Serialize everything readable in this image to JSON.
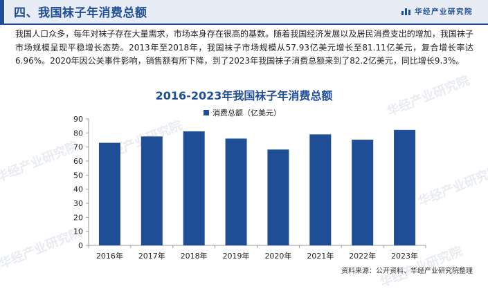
{
  "header": {
    "title": "四、我国袜子年消费总额",
    "brand": "华经产业研究院"
  },
  "paragraph": "我国人口众多，每年对袜子存在大量需求，市场本身存在很高的基数。随着我国经济发展以及居民消费支出的增加，我国袜子市场规模呈现平稳增长态势。2013年至2018年，我国袜子市场规模从57.93亿美元增长至81.11亿美元，复合增长率达6.96%。2020年因公关事件影响，销售额有所下降，到了2023年我国袜子消费总额来到了82.2亿美元，同比增长9.3%。",
  "watermark": "华经产业研究院",
  "colors": {
    "accent": "#1f4e96",
    "bar": "#1f4e96"
  },
  "chart_data": {
    "type": "bar",
    "title": "2016-2023年我国袜子年消费总额",
    "categories": [
      "2016年",
      "2017年",
      "2018年",
      "2019年",
      "2020年",
      "2021年",
      "2022年",
      "2023年"
    ],
    "series": [
      {
        "name": "消费总额（亿美元）",
        "values": [
          73,
          77.5,
          81.11,
          76,
          68.2,
          79,
          75.2,
          82.2
        ]
      }
    ],
    "ylim": [
      0,
      90
    ],
    "yticks": [
      0,
      10,
      20,
      30,
      40,
      50,
      60,
      70,
      80,
      90
    ],
    "xlabel": "",
    "ylabel": "",
    "grid": false,
    "legend": "top-center"
  },
  "source": "资料来源：公开资料、华经产业研究院整理"
}
